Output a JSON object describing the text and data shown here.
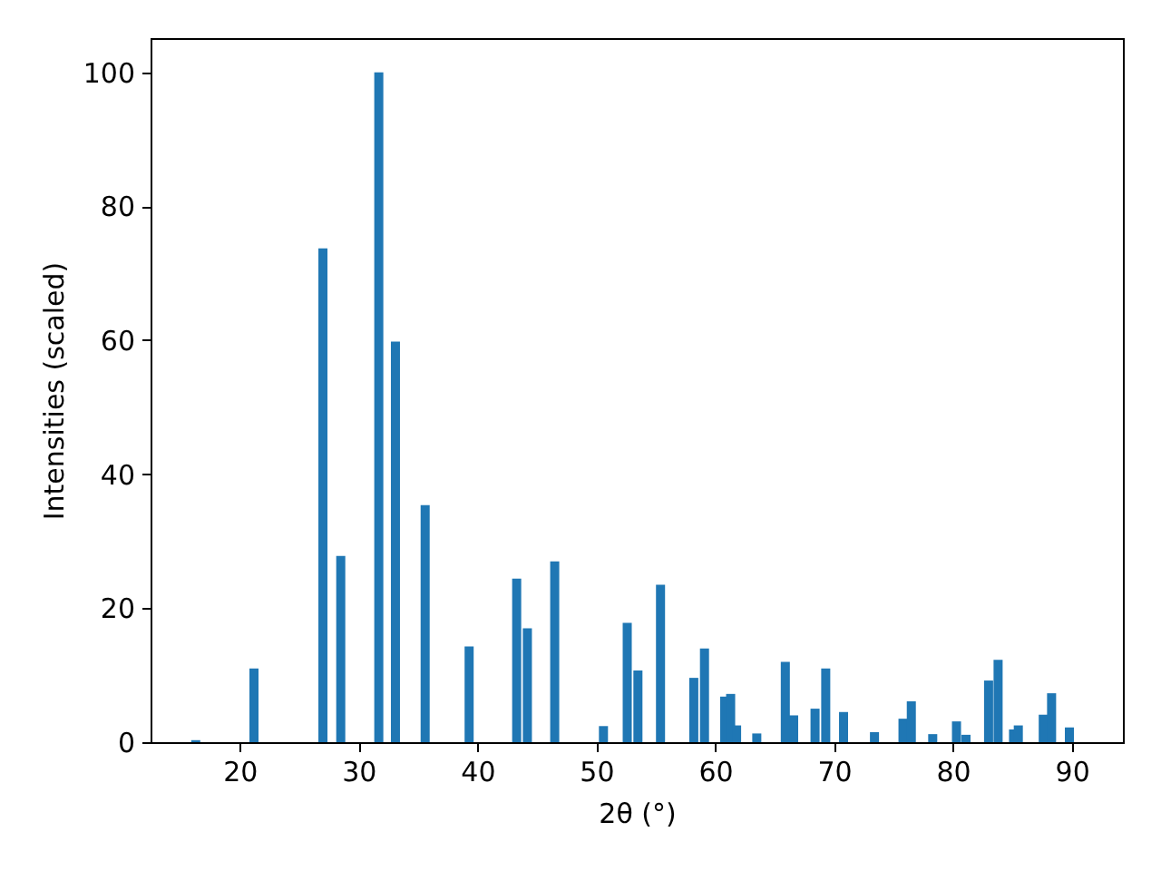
{
  "chart_data": {
    "type": "bar",
    "xlabel": "2θ (°)",
    "ylabel": "Intensities (scaled)",
    "x": [
      16.3,
      21.2,
      27.0,
      28.5,
      31.7,
      33.1,
      35.6,
      39.3,
      43.3,
      44.2,
      46.5,
      50.6,
      52.6,
      53.5,
      55.4,
      58.2,
      59.1,
      60.8,
      61.3,
      61.8,
      63.5,
      65.9,
      66.6,
      68.4,
      69.3,
      70.8,
      73.4,
      75.8,
      76.5,
      78.3,
      80.3,
      81.1,
      83.0,
      83.8,
      85.1,
      85.5,
      87.6,
      88.3,
      89.8
    ],
    "values": [
      0.3,
      11,
      73.7,
      27.8,
      100,
      59.8,
      35.4,
      14.3,
      24.4,
      17,
      27,
      2.4,
      17.8,
      10.7,
      23.5,
      9.6,
      14,
      6.8,
      7.2,
      2.5,
      1.3,
      12,
      4,
      5,
      11,
      4.5,
      1.5,
      3.5,
      6.1,
      1.2,
      3.1,
      1.1,
      9.2,
      12.3,
      1.9,
      2.5,
      4.1,
      7.3,
      2.2
    ],
    "color": "#1f77b4",
    "xlim": [
      12.5,
      94.3
    ],
    "xticks": [
      20,
      30,
      40,
      50,
      60,
      70,
      80,
      90
    ],
    "ylim": [
      0,
      105.1
    ],
    "yticks": [
      0,
      20,
      40,
      60,
      80,
      100
    ],
    "grid": false
  }
}
